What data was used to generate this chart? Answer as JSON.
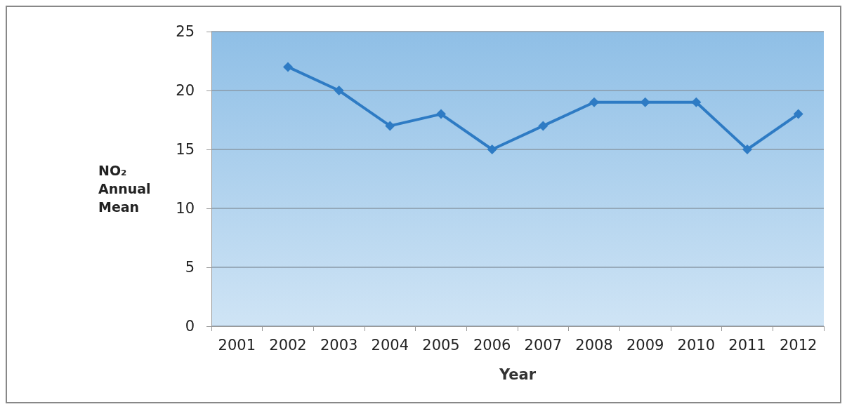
{
  "chart_data": {
    "type": "line",
    "xlabel": "Year",
    "ylabel": "NO₂ Annual Mean",
    "categories": [
      "2001",
      "2002",
      "2003",
      "2004",
      "2005",
      "2006",
      "2007",
      "2008",
      "2009",
      "2010",
      "2011",
      "2012"
    ],
    "series": [
      {
        "color": "#2e7bc4",
        "values": [
          null,
          22,
          20,
          17,
          18,
          15,
          17,
          19,
          19,
          19,
          15,
          18
        ]
      }
    ],
    "ylim": [
      0,
      25
    ],
    "yticks": [
      0,
      5,
      10,
      15,
      20,
      25
    ],
    "grid": "y",
    "marker": "diamond",
    "line_style": "solid"
  }
}
